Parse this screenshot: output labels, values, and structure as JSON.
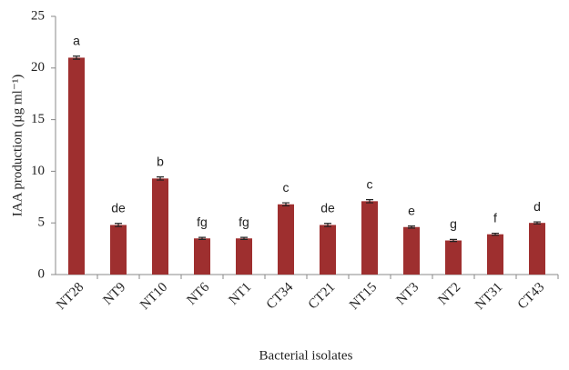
{
  "chart_data": {
    "type": "bar",
    "y_label": "IAA production (µg ml⁻¹)",
    "x_label": "Bacterial isolates",
    "categories": [
      "NT28",
      "NT9",
      "NT10",
      "NT6",
      "NT1",
      "CT34",
      "CT21",
      "NT15",
      "NT3",
      "NT2",
      "NT31",
      "CT43"
    ],
    "values": [
      21.0,
      4.8,
      9.3,
      3.5,
      3.5,
      6.8,
      4.8,
      7.1,
      4.6,
      3.3,
      3.9,
      5.0
    ],
    "errors": [
      0.15,
      0.15,
      0.15,
      0.1,
      0.1,
      0.15,
      0.15,
      0.15,
      0.1,
      0.1,
      0.1,
      0.1
    ],
    "annotations": [
      "a",
      "de",
      "b",
      "fg",
      "fg",
      "c",
      "de",
      "c",
      "e",
      "g",
      "f",
      "d"
    ],
    "color": "#9e2f2f",
    "ylim": [
      0,
      25
    ],
    "yticks": [
      0,
      5,
      10,
      15,
      20,
      25
    ],
    "grid": false
  }
}
